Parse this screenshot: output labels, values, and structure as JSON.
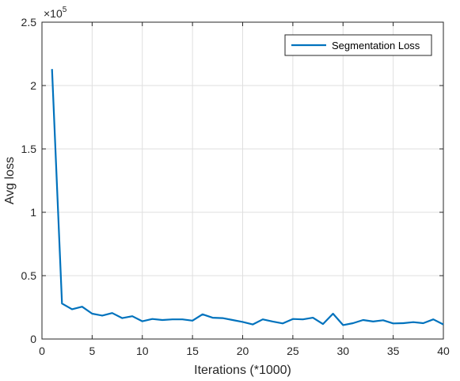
{
  "chart_data": {
    "type": "line",
    "xlabel": "Iterations (*1000)",
    "ylabel": "Avg loss",
    "xlim": [
      0,
      40
    ],
    "ylim": [
      0,
      250000
    ],
    "xticks": [
      0,
      5,
      10,
      15,
      20,
      25,
      30,
      35,
      40
    ],
    "xtick_labels": [
      "0",
      "5",
      "10",
      "15",
      "20",
      "25",
      "30",
      "35",
      "40"
    ],
    "yticks": [
      0,
      50000,
      100000,
      150000,
      200000,
      250000
    ],
    "ytick_labels": [
      "0",
      "0.5",
      "1",
      "1.5",
      "2",
      "2.5"
    ],
    "y_exponent_base": "×10",
    "y_exponent_power": "5",
    "grid": true,
    "legend_position": "top-right",
    "series": [
      {
        "name": "Segmentation Loss",
        "color": "#0072bd",
        "x": [
          1,
          2,
          3,
          4,
          5,
          6,
          7,
          8,
          9,
          10,
          11,
          12,
          13,
          14,
          15,
          16,
          17,
          18,
          19,
          20,
          21,
          22,
          23,
          24,
          25,
          26,
          27,
          28,
          29,
          30,
          31,
          32,
          33,
          34,
          35,
          36,
          37,
          38,
          39,
          40
        ],
        "y": [
          213000,
          28000,
          23500,
          25500,
          20000,
          18500,
          20500,
          16500,
          18000,
          14000,
          15800,
          15000,
          15500,
          15500,
          14500,
          19500,
          16800,
          16500,
          15000,
          13500,
          11500,
          15500,
          13800,
          12300,
          15800,
          15500,
          16800,
          11800,
          20000,
          11000,
          12500,
          15000,
          13800,
          14800,
          12300,
          12500,
          13300,
          12500,
          15500,
          11500
        ]
      }
    ]
  }
}
